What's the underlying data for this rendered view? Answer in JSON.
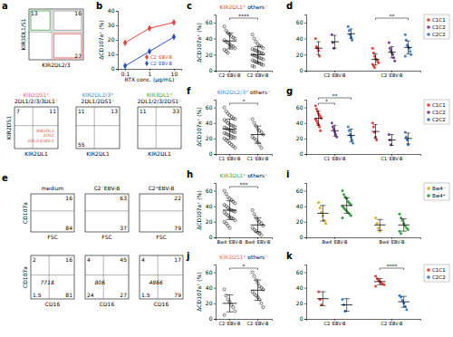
{
  "chart_data": [
    {
      "panel": "a",
      "type": "flow",
      "xlabel": "KIR2DL2/3",
      "ylabel": "KIR3DL1/S1",
      "quadrants": {
        "top_left": 13,
        "top_right": 16,
        "bottom_right": 27
      }
    },
    {
      "type": "flow",
      "title": "KIR2DS1⁺",
      "subtitle": "2DL1/2/3/3DL1⁻",
      "xlabel": "KIR2DL1",
      "ylabel": "KIR2DS1",
      "quadrants": {
        "top_left": 7,
        "top_right": 11
      },
      "annotations": [
        "KIR2DL1⁺",
        "2DS1⁻",
        "2DL2/3/3DL1⁻"
      ]
    },
    {
      "type": "flow",
      "title": "KIR2DL2/3⁺",
      "subtitle": "2DL1/2DS1⁻",
      "xlabel": "KIR2DL1",
      "quadrants": {
        "top_left": 11,
        "top_right": 13,
        "bottom_left": 55
      }
    },
    {
      "type": "flow",
      "title": "KIR3DL1⁺",
      "subtitle": "2DL1/2/3/2DS1⁻",
      "xlabel": "KIR2DL1",
      "quadrants": {
        "top_left": 11,
        "top_right": 33
      }
    },
    {
      "panel": "b",
      "type": "line",
      "xlabel": "RTX conc. (μg/mL)",
      "ylabel": "ΔCD107a⁺ (%)",
      "log": "x",
      "x": [
        0.1,
        1,
        10
      ],
      "series": [
        {
          "name": "C2⁻EBV-B",
          "color": "#e8403a",
          "values": [
            18,
            28,
            32
          ]
        },
        {
          "name": "C2⁺EBV-B",
          "color": "#2a4fc8",
          "values": [
            2,
            12,
            22
          ]
        }
      ],
      "xlim": [
        0.05,
        20
      ],
      "xticks": [
        0.1,
        1,
        10
      ],
      "ylim": [
        0,
        40
      ],
      "yticks": [
        0,
        10,
        20,
        30,
        40
      ],
      "marker": "diamond",
      "legend": "lower right"
    },
    {
      "panel": "c",
      "type": "strip",
      "title": "KIR2DL1⁺",
      "subtitle": "others⁻",
      "ylabel": "ΔCD107a⁺ (%)",
      "categories": [
        "C2⁻EBV-B",
        "C2⁺EBV-B"
      ],
      "values": [
        [
          55,
          50,
          47,
          45,
          43,
          41,
          40,
          38,
          36,
          35,
          33,
          31,
          30,
          28,
          26,
          24,
          22,
          30
        ],
        [
          45,
          40,
          36,
          33,
          31,
          30,
          28,
          27,
          26,
          25,
          24,
          23,
          22,
          21,
          20,
          19,
          18,
          17,
          16,
          15,
          14,
          13,
          12,
          11,
          10,
          9,
          8,
          7,
          6,
          5
        ]
      ],
      "means": [
        37,
        20
      ],
      "errors": [
        10,
        10
      ],
      "ylim": [
        0,
        70
      ],
      "yticks": [
        0,
        20,
        40,
        60
      ],
      "annotations": [
        {
          "text": "****",
          "between": [
            "C2⁻EBV-B",
            "C2⁺EBV-B"
          ]
        }
      ]
    },
    {
      "panel": "d",
      "type": "strip",
      "categories": [
        "C2⁻EBV-B",
        "C2⁺EBV-B"
      ],
      "ylim": [
        0,
        70
      ],
      "yticks": [
        0,
        20,
        40,
        60
      ],
      "legend": "right",
      "series": [
        {
          "name": "C1C1",
          "color": "#e8403a",
          "values": [
            [
              40,
              30,
              28,
              25,
              18
            ],
            [
              28,
              22,
              18,
              15,
              14,
              12,
              10,
              8,
              6,
              4
            ]
          ],
          "means": [
            28,
            14
          ],
          "errors": [
            8,
            7
          ]
        },
        {
          "name": "C1C2",
          "color": "#7a3fa0",
          "values": [
            [
              45,
              35,
              28
            ],
            [
              35,
              28,
              25,
              22,
              20,
              16,
              12
            ]
          ],
          "means": [
            36,
            23
          ],
          "errors": [
            8,
            7
          ]
        },
        {
          "name": "C2C2",
          "color": "#3a7fd0",
          "values": [
            [
              55,
              50,
              45,
              42,
              38
            ],
            [
              45,
              38,
              32,
              30,
              28,
              24,
              20,
              18
            ]
          ],
          "means": [
            46,
            29
          ],
          "errors": [
            6,
            8
          ]
        }
      ],
      "annotations": [
        {
          "text": "**",
          "category": "C2⁺EBV-B",
          "between": [
            "C1C1",
            "C2C2"
          ]
        }
      ]
    },
    {
      "panel": "e",
      "type": "flow",
      "title": "medium",
      "xlabel": "FSC",
      "ylabel": "CD107a",
      "quadrants": {
        "top_right": 16,
        "bottom_right": 84
      }
    },
    {
      "type": "flow",
      "title": "C2⁻EBV-B",
      "xlabel": "FSC",
      "quadrants": {
        "top_right": 63,
        "bottom_right": 37
      }
    },
    {
      "type": "flow",
      "title": "C2⁺EBV-B",
      "xlabel": "FSC",
      "quadrants": {
        "top_right": 22,
        "bottom_right": 79
      }
    },
    {
      "type": "flow",
      "xlabel": "CD16",
      "ylabel": "CD107a",
      "quadrants": {
        "top_left": 2,
        "top_right": 16,
        "bottom_left": 1.5,
        "bottom_right": 81
      },
      "mfi": 7718
    },
    {
      "type": "flow",
      "xlabel": "CD16",
      "quadrants": {
        "top_left": 4,
        "top_right": 45,
        "bottom_left": 24,
        "bottom_right": 27
      },
      "mfi": 806
    },
    {
      "type": "flow",
      "xlabel": "CD16",
      "quadrants": {
        "top_left": 4,
        "top_right": 17,
        "bottom_left": 1.5,
        "bottom_right": 79
      },
      "mfi": 4866
    },
    {
      "panel": "f",
      "type": "strip",
      "title": "KIR2DL2/3⁺",
      "subtitle": "others⁻",
      "ylabel": "ΔCD107a⁺ (%)",
      "categories": [
        "C1⁻EBV-B",
        "C1⁺EBV-B"
      ],
      "values": [
        [
          60,
          55,
          52,
          50,
          48,
          46,
          45,
          44,
          42,
          40,
          38,
          37,
          36,
          35,
          34,
          33,
          32,
          31,
          30,
          29,
          28,
          27,
          26,
          25,
          24,
          23,
          22,
          21,
          20,
          18,
          16,
          14,
          12,
          10,
          8
        ],
        [
          45,
          40,
          36,
          32,
          30,
          28,
          25,
          22,
          20,
          18,
          15,
          12,
          8
        ]
      ],
      "means": [
        32,
        25
      ],
      "errors": [
        13,
        11
      ],
      "ylim": [
        0,
        70
      ],
      "yticks": [
        0,
        20,
        40,
        60
      ],
      "annotations": [
        {
          "text": "*",
          "between": [
            "C1⁻EBV-B",
            "C1⁺EBV-B"
          ]
        }
      ]
    },
    {
      "panel": "g",
      "type": "strip",
      "categories": [
        "C1⁻EBV-B",
        "C1⁺EBV-B"
      ],
      "ylim": [
        0,
        70
      ],
      "yticks": [
        0,
        20,
        40,
        60
      ],
      "legend": "right",
      "series": [
        {
          "name": "C1C1",
          "color": "#e8403a",
          "values": [
            [
              62,
              58,
              55,
              52,
              50,
              48,
              46,
              45,
              43,
              40,
              38,
              35,
              30
            ],
            [
              40,
              35,
              28,
              22,
              18
            ]
          ],
          "means": [
            46,
            29
          ],
          "errors": [
            9,
            9
          ]
        },
        {
          "name": "C1C2",
          "color": "#7a3fa0",
          "values": [
            [
              40,
              35,
              32,
              28,
              25,
              22
            ],
            [
              25,
              18,
              12
            ]
          ],
          "means": [
            30,
            18
          ],
          "errors": [
            7,
            7
          ]
        },
        {
          "name": "C2C2",
          "color": "#3a7fd0",
          "values": [
            [
              35,
              30,
              25,
              22,
              18,
              14
            ],
            [
              28,
              22,
              18,
              12
            ]
          ],
          "means": [
            24,
            20
          ],
          "errors": [
            8,
            7
          ]
        }
      ],
      "annotations": [
        {
          "text": "*",
          "category": "C1⁻EBV-B",
          "between": [
            "C1C1",
            "C1C2"
          ]
        },
        {
          "text": "**",
          "category": "C1⁻EBV-B",
          "between": [
            "C1C1",
            "C2C2"
          ]
        }
      ]
    },
    {
      "panel": "h",
      "type": "strip",
      "title": "KIR3DL1⁺",
      "subtitle": "others⁻",
      "ylabel": "ΔCD107a⁺ (%)",
      "categories": [
        "Bw4⁻EBV-B",
        "Bw4⁺EBV-B"
      ],
      "values": [
        [
          60,
          56,
          52,
          50,
          48,
          46,
          44,
          42,
          40,
          38,
          36,
          35,
          34,
          33,
          32,
          30,
          28,
          26,
          25,
          24,
          22,
          20,
          18,
          15,
          12
        ],
        [
          35,
          30,
          26,
          22,
          20,
          18,
          15,
          12,
          10,
          8,
          6,
          5,
          3
        ]
      ],
      "means": [
        35,
        16
      ],
      "errors": [
        12,
        9
      ],
      "ylim": [
        0,
        70
      ],
      "yticks": [
        0,
        20,
        40,
        60
      ],
      "annotations": [
        {
          "text": "***",
          "between": [
            "Bw4⁻EBV-B",
            "Bw4⁺EBV-B"
          ]
        }
      ]
    },
    {
      "panel": "i",
      "type": "strip",
      "categories": [
        "Bw4⁻EBV-B",
        "Bw4⁺EBV-B"
      ],
      "ylim": [
        0,
        70
      ],
      "yticks": [
        0,
        20,
        40,
        60
      ],
      "legend": "right",
      "series": [
        {
          "name": "Bw4⁻",
          "color": "#e0b020",
          "values": [
            [
              45,
              38,
              32,
              28,
              22,
              18
            ],
            [
              25,
              18,
              12,
              8
            ]
          ],
          "means": [
            31,
            16
          ],
          "errors": [
            10,
            7
          ]
        },
        {
          "name": "Bw4⁺",
          "color": "#3aa040",
          "values": [
            [
              60,
              55,
              52,
              50,
              46,
              44,
              42,
              40,
              38,
              36,
              34,
              32,
              30,
              28,
              25
            ],
            [
              30,
              25,
              22,
              18,
              15,
              12,
              10,
              8,
              5
            ]
          ],
          "means": [
            41,
            16
          ],
          "errors": [
            10,
            8
          ]
        }
      ]
    },
    {
      "panel": "j",
      "type": "strip",
      "title": "KIR2DS1⁺",
      "subtitle": "others⁻",
      "ylabel": "ΔCD107a⁺ (%)",
      "categories": [
        "C2⁻EBV-B",
        "C2⁺EBV-B"
      ],
      "values": [
        [
          38,
          30,
          25,
          22,
          18,
          15,
          10,
          5
        ],
        [
          60,
          55,
          50,
          46,
          42,
          40,
          38,
          35,
          32,
          30,
          28,
          25,
          20,
          15
        ]
      ],
      "means": [
        20,
        37
      ],
      "errors": [
        11,
        13
      ],
      "ylim": [
        0,
        70
      ],
      "yticks": [
        0,
        20,
        40,
        60
      ],
      "annotations": [
        {
          "text": "*",
          "between": [
            "C2⁻EBV-B",
            "C2⁺EBV-B"
          ]
        }
      ]
    },
    {
      "panel": "k",
      "type": "strip",
      "categories": [
        "C2⁻EBV-B",
        "C2⁺EBV-B"
      ],
      "ylim": [
        0,
        70
      ],
      "yticks": [
        0,
        20,
        40,
        60
      ],
      "legend": "right",
      "series": [
        {
          "name": "C1C1",
          "color": "#e8403a",
          "values": [
            [
              35,
              25,
              18
            ],
            [
              55,
              52,
              50,
              48,
              46,
              45,
              44,
              42
            ]
          ],
          "means": [
            26,
            48
          ],
          "errors": [
            9,
            4
          ]
        },
        {
          "name": "C2C2",
          "color": "#3a7fd0",
          "values": [
            [
              25,
              18,
              10
            ],
            [
              30,
              28,
              24,
              20,
              16,
              12
            ]
          ],
          "means": [
            18,
            22
          ],
          "errors": [
            8,
            7
          ]
        }
      ],
      "annotations": [
        {
          "text": "****",
          "category": "C2⁺EBV-B",
          "between": [
            "C1C1",
            "C2C2"
          ]
        }
      ]
    }
  ]
}
